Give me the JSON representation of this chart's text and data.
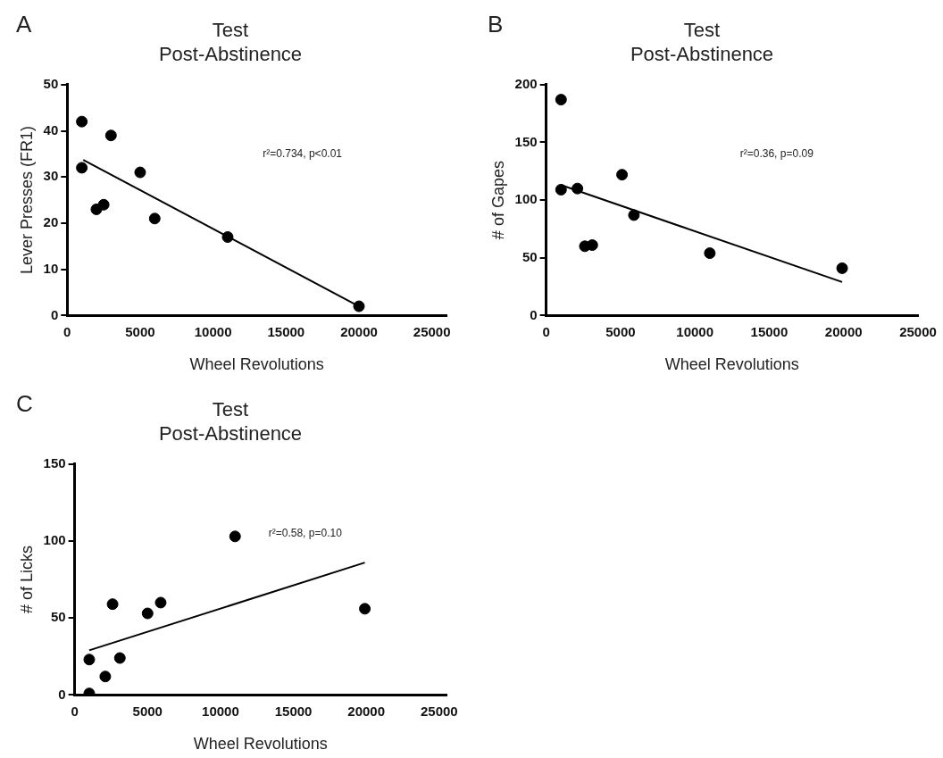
{
  "chart_data": [
    {
      "type": "scatter",
      "title": "Test",
      "subtitle": "Post-Abstinence",
      "xlabel": "Wheel Revolutions",
      "ylabel": "Lever Presses (FR1)",
      "annotations": [
        "A",
        "r²=0.734, p<0.01"
      ],
      "xlim": [
        0,
        26000
      ],
      "xticks": [
        0,
        5000,
        10000,
        15000,
        20000,
        25000
      ],
      "ylim": [
        0,
        50
      ],
      "yticks": [
        0,
        10,
        20,
        30,
        40,
        50
      ],
      "grid": false,
      "legend": false,
      "marker": "circle",
      "series": [
        {
          "color": "#000000",
          "x": [
            1000,
            1000,
            2000,
            2500,
            3000,
            5000,
            6000,
            11000,
            20000
          ],
          "values": [
            42,
            32,
            23,
            24,
            39,
            31,
            21,
            17,
            2
          ]
        },
        {
          "type": "line",
          "color": "#000000",
          "marker": "none",
          "x": [
            1100,
            20000
          ],
          "values": [
            33.7,
            2
          ]
        }
      ]
    },
    {
      "type": "scatter",
      "title": "Test",
      "subtitle": "Post-Abstinence",
      "xlabel": "Wheel Revolutions",
      "ylabel": "# of Gapes",
      "annotations": [
        "B",
        "r²=0.36, p=0.09"
      ],
      "xlim": [
        0,
        25000
      ],
      "xticks": [
        0,
        5000,
        10000,
        15000,
        20000,
        25000
      ],
      "ylim": [
        0,
        200
      ],
      "yticks": [
        0,
        50,
        100,
        150,
        200
      ],
      "grid": false,
      "legend": false,
      "marker": "circle",
      "series": [
        {
          "color": "#000000",
          "x": [
            1000,
            1000,
            2100,
            2600,
            3100,
            5100,
            5900,
            11000,
            19900
          ],
          "values": [
            187,
            109,
            110,
            60,
            61,
            122,
            87,
            54,
            41
          ]
        },
        {
          "type": "line",
          "color": "#000000",
          "marker": "none",
          "x": [
            1000,
            19900
          ],
          "values": [
            113,
            29
          ]
        }
      ]
    },
    {
      "type": "scatter",
      "title": "Test",
      "subtitle": "Post-Abstinence",
      "xlabel": "Wheel Revolutions",
      "ylabel": "# of Licks",
      "annotations": [
        "C",
        "r²=0.58, p=0.10"
      ],
      "xlim": [
        0,
        25500
      ],
      "xticks": [
        0,
        5000,
        10000,
        15000,
        20000,
        25000
      ],
      "ylim": [
        0,
        150
      ],
      "yticks": [
        0,
        50,
        100,
        150
      ],
      "grid": false,
      "legend": false,
      "marker": "circle",
      "series": [
        {
          "color": "#000000",
          "x": [
            1000,
            1000,
            2100,
            2600,
            3100,
            5000,
            5900,
            11000,
            19900
          ],
          "values": [
            1,
            23,
            12,
            59,
            24,
            53,
            60,
            103,
            56
          ]
        },
        {
          "type": "line",
          "color": "#000000",
          "marker": "none",
          "x": [
            1000,
            19900
          ],
          "values": [
            29,
            86
          ]
        }
      ]
    }
  ]
}
